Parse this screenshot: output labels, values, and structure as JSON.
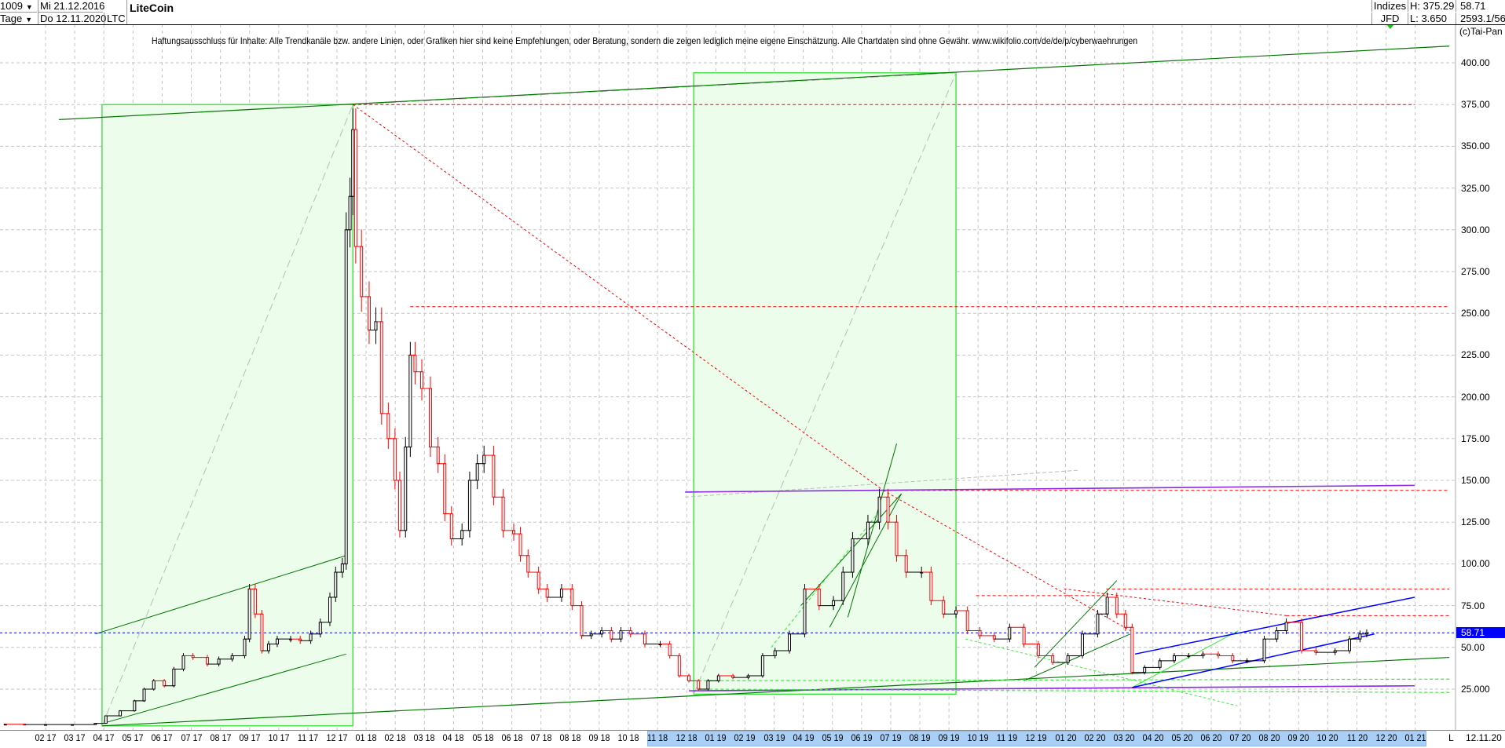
{
  "header": {
    "bars_count": "1009",
    "period": "Tage",
    "start_date": "Mi 21.12.2016",
    "end_date": "Do 12.11.2020",
    "symbol": "LTC",
    "title": "LiteCoin",
    "category": "Indizes",
    "source": "JFD",
    "high": "H: 375.29",
    "low": "L: 3.650",
    "last": "58.71",
    "info": "2593.1/56"
  },
  "disclaimer": "Haftungsausschluss für Inhalte: Alle Trendkanäle bzw. andere Linien, oder Grafiken hier sind keine Empfehlungen, oder Beratung, sondern die zeigen lediglich meine eigene Einschätzung. Alle Chartdaten sind ohne Gewähr.  www.wikifolio.com/de/de/p/cyberwaehrungen",
  "copyright": "(c)Tai-Pan",
  "x_axis": {
    "last_label": "L",
    "last_date": "12.11.20"
  },
  "colors": {
    "up_candle": "#000000",
    "down_candle": "#ff0000",
    "current_price": "#0000ff",
    "box_fill": "#ecfdec",
    "box_stroke": "#33dd33",
    "trend_green": "#007700",
    "channel_blue": "#0000ff",
    "support_purple": "#8a2be2",
    "resistance_red": "#ff0000"
  },
  "chart_data": {
    "type": "candlestick",
    "title": "LiteCoin",
    "ylim": [
      0,
      410
    ],
    "grid": true,
    "y_ticks": [
      "400.00",
      "375.00",
      "350.00",
      "325.00",
      "300.00",
      "275.00",
      "250.00",
      "225.00",
      "200.00",
      "175.00",
      "150.00",
      "125.00",
      "100.00",
      "75.00",
      "50.00",
      "25.000"
    ],
    "y_tick_values": [
      400,
      375,
      350,
      325,
      300,
      275,
      250,
      225,
      200,
      175,
      150,
      125,
      100,
      75,
      50,
      25
    ],
    "x_ticks": [
      "02 17",
      "03 17",
      "04 17",
      "05 17",
      "06 17",
      "07 17",
      "08 17",
      "09 17",
      "10 17",
      "11 17",
      "12 17",
      "01 18",
      "02 18",
      "03 18",
      "04 18",
      "05 18",
      "06 18",
      "07 18",
      "08 18",
      "09 18",
      "10 18",
      "11 18",
      "12 18",
      "01 19",
      "02 19",
      "03 19",
      "04 19",
      "05 19",
      "06 19",
      "07 19",
      "08 19",
      "09 19",
      "10 19",
      "11 19",
      "12 19",
      "01 20",
      "02 20",
      "03 20",
      "04 20",
      "05 20",
      "06 20",
      "07 20",
      "08 20",
      "09 20",
      "10 20",
      "11 20",
      "12 20",
      "01 21"
    ],
    "current_price": 58.71,
    "series": [
      [
        "2016-12-21",
        4.0
      ],
      [
        "2017-01-10",
        3.8
      ],
      [
        "2017-02-01",
        3.8
      ],
      [
        "2017-03-01",
        3.8
      ],
      [
        "2017-03-25",
        4.5
      ],
      [
        "2017-04-05",
        9
      ],
      [
        "2017-04-20",
        12
      ],
      [
        "2017-05-05",
        18
      ],
      [
        "2017-05-15",
        25
      ],
      [
        "2017-05-25",
        30
      ],
      [
        "2017-06-05",
        27
      ],
      [
        "2017-06-15",
        37
      ],
      [
        "2017-06-25",
        45
      ],
      [
        "2017-07-05",
        44
      ],
      [
        "2017-07-20",
        40
      ],
      [
        "2017-08-01",
        43
      ],
      [
        "2017-08-15",
        45
      ],
      [
        "2017-08-28",
        55
      ],
      [
        "2017-09-02",
        85
      ],
      [
        "2017-09-08",
        70
      ],
      [
        "2017-09-15",
        48
      ],
      [
        "2017-09-22",
        52
      ],
      [
        "2017-10-01",
        55
      ],
      [
        "2017-10-15",
        55
      ],
      [
        "2017-10-25",
        54
      ],
      [
        "2017-11-05",
        58
      ],
      [
        "2017-11-15",
        65
      ],
      [
        "2017-11-25",
        80
      ],
      [
        "2017-12-01",
        95
      ],
      [
        "2017-12-08",
        100
      ],
      [
        "2017-12-12",
        300
      ],
      [
        "2017-12-16",
        320
      ],
      [
        "2017-12-19",
        360
      ],
      [
        "2017-12-22",
        290
      ],
      [
        "2017-12-28",
        260
      ],
      [
        "2018-01-05",
        240
      ],
      [
        "2018-01-12",
        245
      ],
      [
        "2018-01-18",
        190
      ],
      [
        "2018-01-25",
        175
      ],
      [
        "2018-02-01",
        150
      ],
      [
        "2018-02-06",
        120
      ],
      [
        "2018-02-12",
        170
      ],
      [
        "2018-02-17",
        225
      ],
      [
        "2018-02-22",
        215
      ],
      [
        "2018-03-01",
        205
      ],
      [
        "2018-03-10",
        170
      ],
      [
        "2018-03-18",
        160
      ],
      [
        "2018-03-25",
        130
      ],
      [
        "2018-04-01",
        115
      ],
      [
        "2018-04-12",
        120
      ],
      [
        "2018-04-20",
        150
      ],
      [
        "2018-04-28",
        160
      ],
      [
        "2018-05-05",
        165
      ],
      [
        "2018-05-15",
        140
      ],
      [
        "2018-05-25",
        120
      ],
      [
        "2018-06-05",
        118
      ],
      [
        "2018-06-12",
        105
      ],
      [
        "2018-06-20",
        95
      ],
      [
        "2018-07-01",
        85
      ],
      [
        "2018-07-10",
        80
      ],
      [
        "2018-07-25",
        85
      ],
      [
        "2018-08-05",
        75
      ],
      [
        "2018-08-15",
        57
      ],
      [
        "2018-08-25",
        58
      ],
      [
        "2018-09-05",
        60
      ],
      [
        "2018-09-15",
        55
      ],
      [
        "2018-09-25",
        60
      ],
      [
        "2018-10-05",
        58
      ],
      [
        "2018-10-20",
        52
      ],
      [
        "2018-11-05",
        52
      ],
      [
        "2018-11-15",
        45
      ],
      [
        "2018-11-25",
        33
      ],
      [
        "2018-12-05",
        30
      ],
      [
        "2018-12-15",
        25
      ],
      [
        "2018-12-25",
        30
      ],
      [
        "2019-01-05",
        33
      ],
      [
        "2019-01-20",
        32
      ],
      [
        "2019-02-05",
        33
      ],
      [
        "2019-02-20",
        45
      ],
      [
        "2019-03-05",
        48
      ],
      [
        "2019-03-20",
        58
      ],
      [
        "2019-04-05",
        85
      ],
      [
        "2019-04-20",
        75
      ],
      [
        "2019-05-05",
        78
      ],
      [
        "2019-05-15",
        95
      ],
      [
        "2019-05-25",
        115
      ],
      [
        "2019-06-10",
        125
      ],
      [
        "2019-06-22",
        140
      ],
      [
        "2019-07-01",
        125
      ],
      [
        "2019-07-10",
        105
      ],
      [
        "2019-07-20",
        95
      ],
      [
        "2019-08-05",
        95
      ],
      [
        "2019-08-15",
        78
      ],
      [
        "2019-08-28",
        70
      ],
      [
        "2019-09-10",
        72
      ],
      [
        "2019-09-22",
        60
      ],
      [
        "2019-10-05",
        57
      ],
      [
        "2019-10-20",
        55
      ],
      [
        "2019-11-05",
        62
      ],
      [
        "2019-11-20",
        52
      ],
      [
        "2019-12-05",
        45
      ],
      [
        "2019-12-20",
        41
      ],
      [
        "2020-01-05",
        45
      ],
      [
        "2020-01-20",
        58
      ],
      [
        "2020-02-05",
        70
      ],
      [
        "2020-02-15",
        80
      ],
      [
        "2020-02-25",
        70
      ],
      [
        "2020-03-05",
        62
      ],
      [
        "2020-03-12",
        35
      ],
      [
        "2020-03-25",
        38
      ],
      [
        "2020-04-10",
        42
      ],
      [
        "2020-04-25",
        45
      ],
      [
        "2020-05-10",
        45
      ],
      [
        "2020-05-25",
        46
      ],
      [
        "2020-06-10",
        45
      ],
      [
        "2020-06-25",
        42
      ],
      [
        "2020-07-10",
        42
      ],
      [
        "2020-07-28",
        55
      ],
      [
        "2020-08-10",
        60
      ],
      [
        "2020-08-20",
        65
      ],
      [
        "2020-09-05",
        48
      ],
      [
        "2020-09-20",
        47
      ],
      [
        "2020-10-10",
        48
      ],
      [
        "2020-10-25",
        55
      ],
      [
        "2020-11-05",
        58
      ],
      [
        "2020-11-12",
        58.71
      ]
    ]
  }
}
